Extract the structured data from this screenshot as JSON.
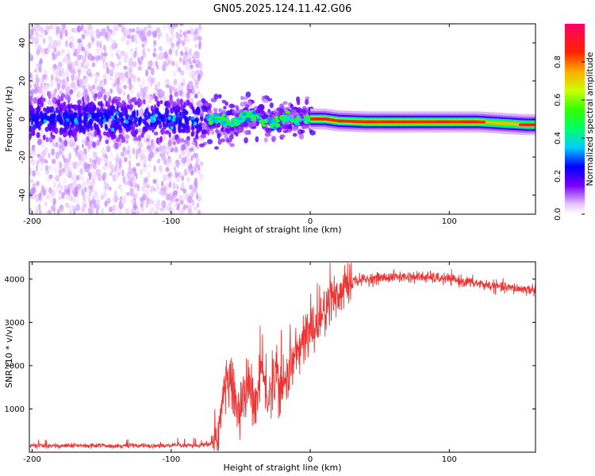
{
  "title": "GN05.2025.124.11.42.G06",
  "chart_data": [
    {
      "type": "heatmap",
      "xlabel": "Height of straight line (km)",
      "ylabel": "Frequency (Hz)",
      "xlim": [
        -202,
        162
      ],
      "ylim": [
        -50,
        50
      ],
      "xticks": [
        -200,
        -100,
        0,
        100
      ],
      "yticks": [
        -40,
        -20,
        0,
        20,
        40
      ],
      "colorbar": {
        "label": "Normalized spectral amplitude",
        "range": [
          0.0,
          1.0
        ],
        "ticks": [
          0.0,
          0.2,
          0.4,
          0.6,
          0.8
        ]
      },
      "ridge": {
        "description": "frequency centre of strongest spectral energy",
        "x": [
          -200,
          -80,
          -60,
          -40,
          -25,
          -15,
          0,
          10,
          20,
          40,
          80,
          120,
          155,
          162
        ],
        "y": [
          0,
          0,
          -1,
          1,
          -2,
          0,
          0,
          0,
          -1,
          -1.5,
          -1.5,
          -1.5,
          -3,
          -3
        ]
      }
    },
    {
      "type": "line",
      "xlabel": "Height of straight line (km)",
      "ylabel": "SNR (10 * v/v)",
      "xlim": [
        -202,
        162
      ],
      "ylim": [
        0,
        4400
      ],
      "xticks": [
        -200,
        -100,
        0,
        100
      ],
      "yticks": [
        1000,
        2000,
        3000,
        4000
      ],
      "series": [
        {
          "name": "SNR",
          "color": "#ee3333",
          "x": [
            -202,
            -150,
            -100,
            -80,
            -70,
            -65,
            -62,
            -58,
            -55,
            -50,
            -45,
            -40,
            -35,
            -30,
            -25,
            -20,
            -15,
            -10,
            -5,
            0,
            10,
            20,
            30,
            40,
            60,
            80,
            100,
            120,
            140,
            162
          ],
          "y": [
            150,
            150,
            150,
            150,
            200,
            700,
            1400,
            1700,
            1300,
            900,
            1600,
            1000,
            1900,
            1200,
            1800,
            1400,
            2000,
            2200,
            2600,
            2800,
            3200,
            3700,
            3950,
            4000,
            4050,
            4050,
            4000,
            3900,
            3800,
            3750
          ]
        }
      ]
    }
  ]
}
